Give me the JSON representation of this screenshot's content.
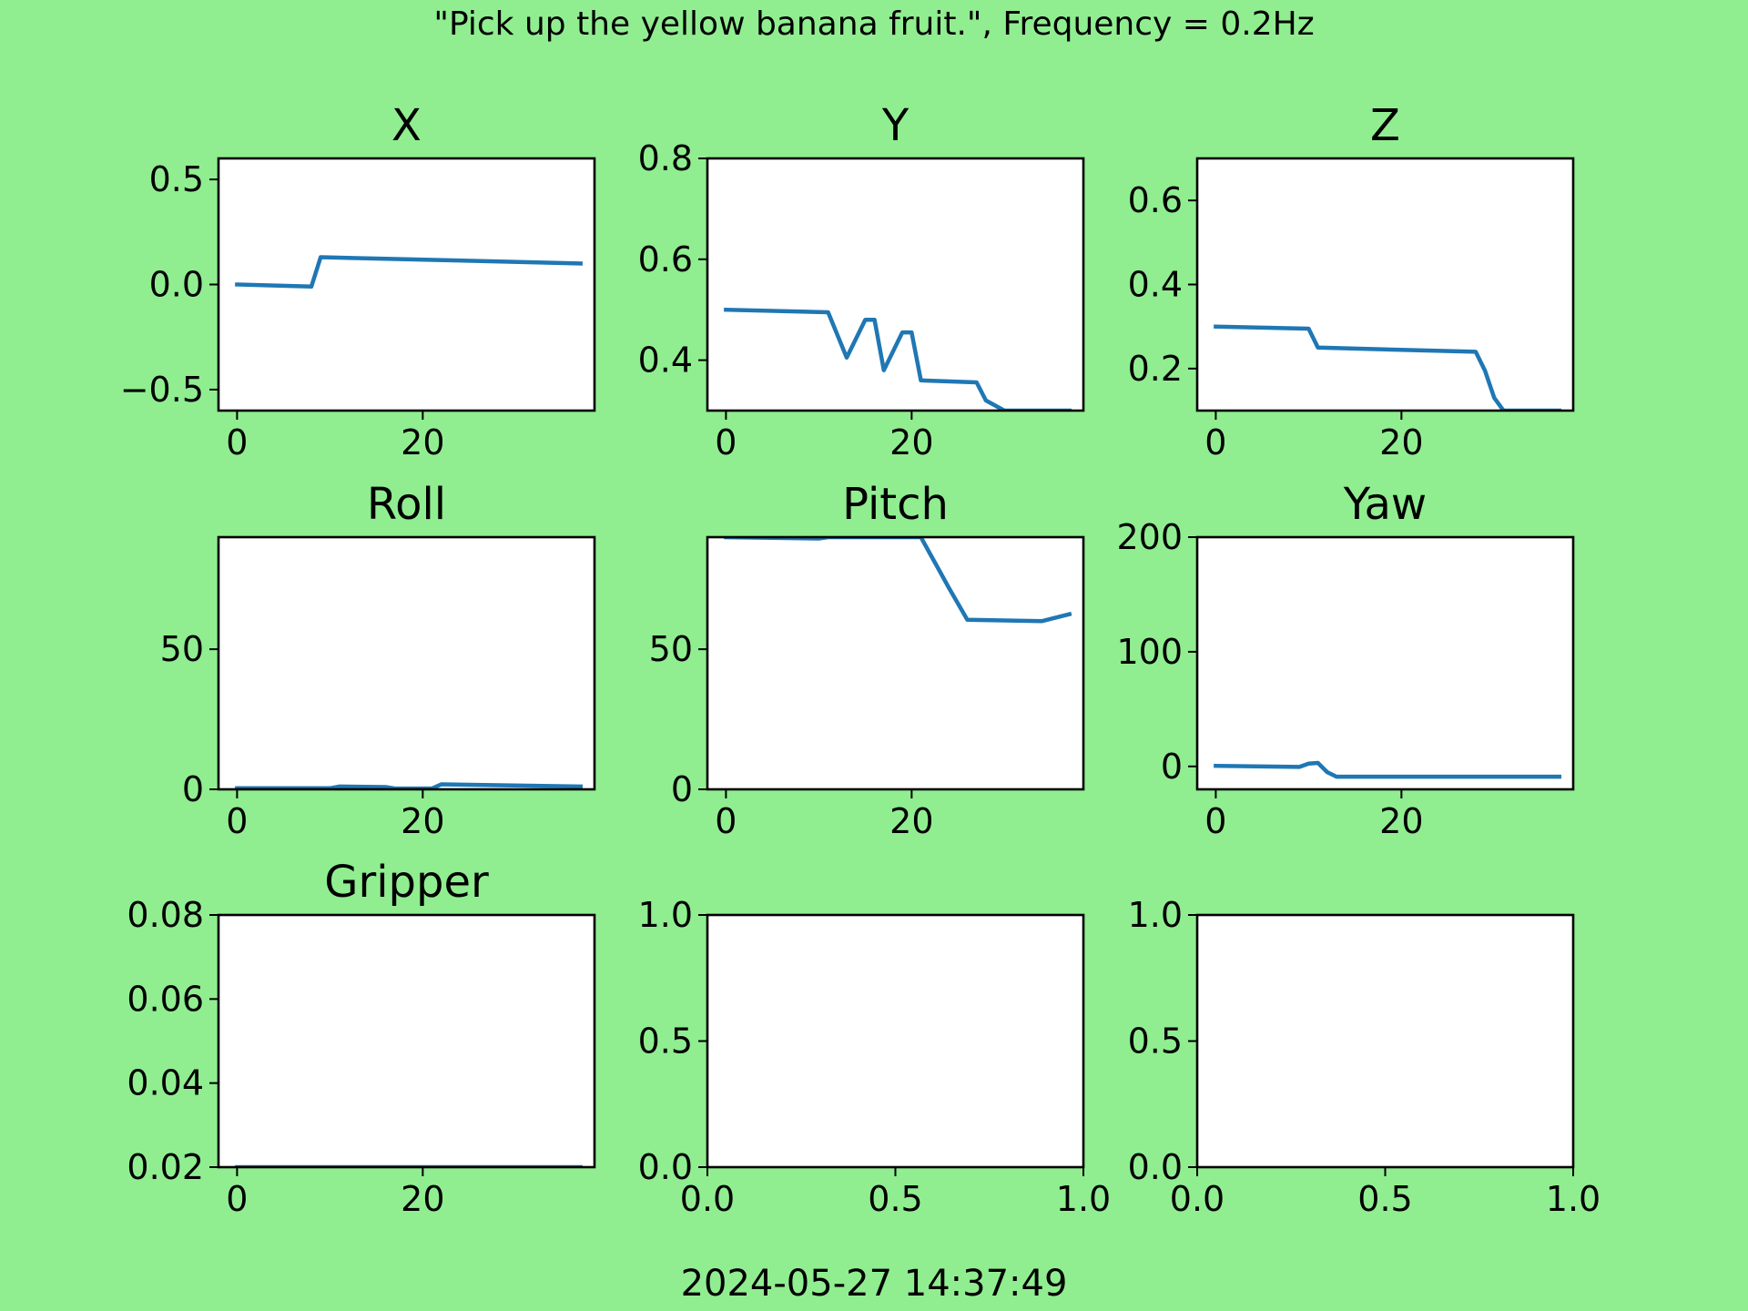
{
  "figure": {
    "suptitle": "\"Pick up the yellow banana fruit.\", Frequency = 0.2Hz",
    "timestamp": "2024-05-27 14:37:49",
    "background": "#90ee90",
    "line_color": "#1f77b4"
  },
  "chart_data": [
    {
      "type": "line",
      "title": "X",
      "xlim": [
        -2,
        38.5
      ],
      "ylim": [
        -0.6,
        0.6
      ],
      "xticks": [
        0,
        20
      ],
      "xticklabels": [
        "0",
        "20"
      ],
      "yticks": [
        -0.5,
        0,
        0.5
      ],
      "yticklabels": [
        "−0.5",
        "0.0",
        "0.5"
      ],
      "series": [
        {
          "x": [
            0,
            8,
            9,
            37
          ],
          "y": [
            0.0,
            -0.01,
            0.13,
            0.1
          ]
        }
      ]
    },
    {
      "type": "line",
      "title": "Y",
      "xlim": [
        -2,
        38.5
      ],
      "ylim": [
        0.3,
        0.8
      ],
      "xticks": [
        0,
        20
      ],
      "xticklabels": [
        "0",
        "20"
      ],
      "yticks": [
        0.4,
        0.6,
        0.8
      ],
      "yticklabels": [
        "0.4",
        "0.6",
        "0.8"
      ],
      "series": [
        {
          "x": [
            0,
            11,
            13,
            15,
            16,
            17,
            19,
            20,
            21,
            27,
            28,
            30,
            37
          ],
          "y": [
            0.5,
            0.495,
            0.405,
            0.48,
            0.48,
            0.38,
            0.455,
            0.455,
            0.36,
            0.356,
            0.32,
            0.3,
            0.3
          ]
        }
      ]
    },
    {
      "type": "line",
      "title": "Z",
      "xlim": [
        -2,
        38.5
      ],
      "ylim": [
        0.1,
        0.7
      ],
      "xticks": [
        0,
        20
      ],
      "xticklabels": [
        "0",
        "20"
      ],
      "yticks": [
        0.2,
        0.4,
        0.6
      ],
      "yticklabels": [
        "0.2",
        "0.4",
        "0.6"
      ],
      "series": [
        {
          "x": [
            0,
            10,
            11,
            28,
            29,
            30,
            31,
            37
          ],
          "y": [
            0.3,
            0.295,
            0.25,
            0.24,
            0.195,
            0.13,
            0.1,
            0.1
          ]
        }
      ]
    },
    {
      "type": "line",
      "title": "Roll",
      "xlim": [
        -2,
        38.5
      ],
      "ylim": [
        0,
        90
      ],
      "xticks": [
        0,
        20
      ],
      "xticklabels": [
        "0",
        "20"
      ],
      "yticks": [
        0,
        50
      ],
      "yticklabels": [
        "0",
        "50"
      ],
      "series": [
        {
          "x": [
            0,
            10,
            11,
            16,
            17,
            21,
            22,
            37
          ],
          "y": [
            0.4,
            0.4,
            1.0,
            0.8,
            0.3,
            0.3,
            1.8,
            1.0
          ]
        }
      ]
    },
    {
      "type": "line",
      "title": "Pitch",
      "xlim": [
        -2,
        38.5
      ],
      "ylim": [
        0,
        90
      ],
      "xticks": [
        0,
        20
      ],
      "xticklabels": [
        "0",
        "20"
      ],
      "yticks": [
        0,
        50
      ],
      "yticklabels": [
        "0",
        "50"
      ],
      "series": [
        {
          "x": [
            0,
            10,
            11,
            21,
            22,
            23,
            24,
            26,
            34,
            37
          ],
          "y": [
            90,
            89.5,
            90,
            90,
            84,
            78,
            72,
            60.5,
            60,
            62.5
          ]
        }
      ]
    },
    {
      "type": "line",
      "title": "Yaw",
      "xlim": [
        -2,
        38.5
      ],
      "ylim": [
        -20,
        200
      ],
      "xticks": [
        0,
        20
      ],
      "xticklabels": [
        "0",
        "20"
      ],
      "yticks": [
        0,
        100,
        200
      ],
      "yticklabels": [
        "0",
        "100",
        "200"
      ],
      "series": [
        {
          "x": [
            0,
            9,
            10,
            11,
            12,
            13,
            37
          ],
          "y": [
            0.5,
            -0.5,
            2.5,
            3,
            -5,
            -9,
            -9
          ]
        }
      ]
    },
    {
      "type": "line",
      "title": "Gripper",
      "xlim": [
        -2,
        38.5
      ],
      "ylim": [
        0.02,
        0.08
      ],
      "xticks": [
        0,
        20
      ],
      "xticklabels": [
        "0",
        "20"
      ],
      "yticks": [
        0.02,
        0.04,
        0.06,
        0.08
      ],
      "yticklabels": [
        "0.02",
        "0.04",
        "0.06",
        "0.08"
      ],
      "series": [
        {
          "x": [
            0,
            37
          ],
          "y": [
            0.02,
            0.02
          ]
        }
      ]
    },
    {
      "type": "line",
      "title": "",
      "xlim": [
        0,
        1
      ],
      "ylim": [
        0,
        1
      ],
      "xticks": [
        0,
        0.5,
        1
      ],
      "xticklabels": [
        "0.0",
        "0.5",
        "1.0"
      ],
      "yticks": [
        0,
        0.5,
        1
      ],
      "yticklabels": [
        "0.0",
        "0.5",
        "1.0"
      ],
      "series": []
    },
    {
      "type": "line",
      "title": "",
      "xlim": [
        0,
        1
      ],
      "ylim": [
        0,
        1
      ],
      "xticks": [
        0,
        0.5,
        1
      ],
      "xticklabels": [
        "0.0",
        "0.5",
        "1.0"
      ],
      "yticks": [
        0,
        0.5,
        1
      ],
      "yticklabels": [
        "0.0",
        "0.5",
        "1.0"
      ],
      "series": []
    }
  ]
}
